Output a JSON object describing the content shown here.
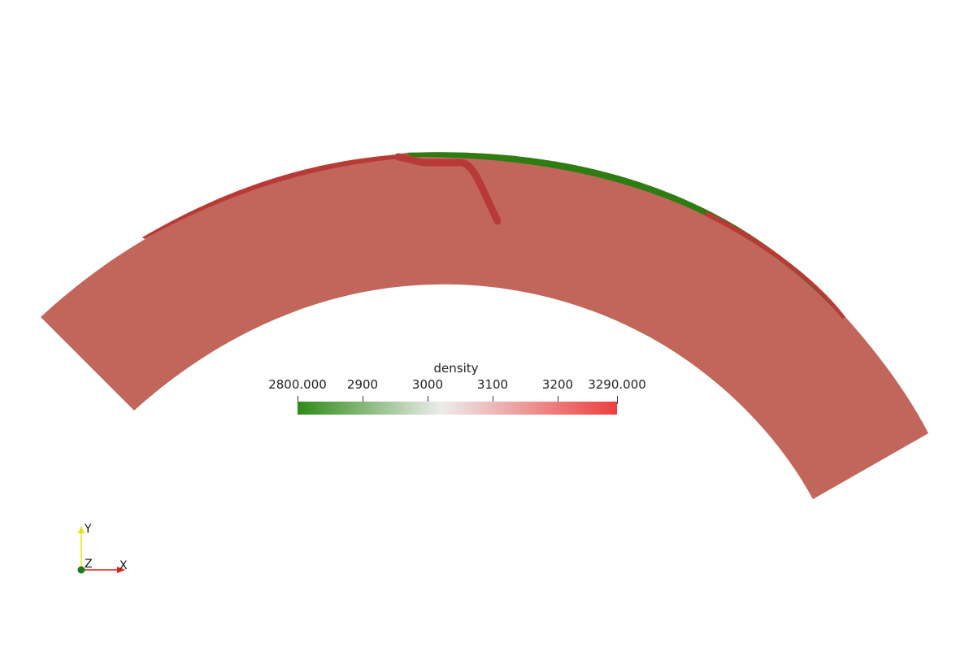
{
  "scene": {
    "colors": {
      "background": "#ffffff",
      "field": "#c2665b",
      "dense_band": "#b83a36",
      "light_band": "#2e7d12"
    }
  },
  "colorbar": {
    "title": "density",
    "labels": [
      "2800.000",
      "2900",
      "3000",
      "3100",
      "3200",
      "3290.000"
    ],
    "min": 2800,
    "max": 3290,
    "colors": {
      "low": "#2e8b17",
      "mid": "#ececec",
      "high": "#ef3d3d"
    }
  },
  "axes": {
    "x_label": "X",
    "y_label": "Y",
    "z_label": "Z",
    "colors": {
      "x": "#e0201a",
      "y": "#e6e018",
      "z": "#1f7a1f"
    }
  }
}
